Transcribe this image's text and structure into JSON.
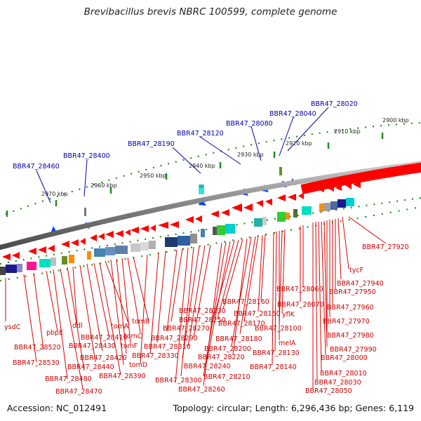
{
  "title": "Brevibacillus brevis NBRC 100599, complete genome",
  "footer": {
    "accession": "Accession: NC_012491",
    "summary": "Topology: circular; Length: 6,296,436 bp; Genes: 6,119"
  },
  "colors": {
    "gene_arrow": "#ff0000",
    "tick": "#228b22",
    "blue_label": "#0000aa",
    "red_label": "#cc0000",
    "backbone_dark": "#555555",
    "backbone_light": "#cccccc"
  },
  "kbp_ticks": [
    "2900 kbp",
    "2910 kbp",
    "2920 kbp",
    "2930 kbp",
    "2940 kbp",
    "2950 kbp",
    "2960 kbp",
    "2970 kbp"
  ],
  "blue_genes": [
    "BBR47_28020",
    "BBR47_28040",
    "BBR47_28080",
    "BBR47_28120",
    "BBR47_28190",
    "BBR47_28400",
    "BBR47_28460"
  ],
  "red_genes": [
    "BBR47_27920",
    "tycF",
    "BBR47_27940",
    "BBR47_27950",
    "BBR47_27960",
    "BBR47_27970",
    "BBR47_27980",
    "BBR47_27990",
    "BBR47_28000",
    "BBR47_28010",
    "BBR47_28030",
    "BBR47_28050",
    "BBR47_28060",
    "BBR47_28070",
    "yflK",
    "BBR47_28100",
    "melA",
    "BBR47_28130",
    "BBR47_28140",
    "BBR47_28160",
    "BBR47_28150",
    "BBR47_28170",
    "BBR47_28180",
    "BBR47_28200",
    "BBR47_28210",
    "BBR47_28220",
    "BBR47_28230",
    "BBR47_28250",
    "BBR47_28240",
    "BBR47_28260",
    "BBR47_28270",
    "BBR47_28290",
    "BBR47_28310",
    "BBR47_28300",
    "BBR47_28330",
    "tomB",
    "tomC",
    "tomF",
    "tomD",
    "tomA",
    "BBR47_28390",
    "BBR47_28410",
    "BBR47_28420",
    "BBR47_28430",
    "BBR47_28440",
    "ddl",
    "BBR47_28470",
    "BBR47_28480",
    "pbpE",
    "BBR47_28520",
    "BBR47_28530",
    "ysdC"
  ]
}
